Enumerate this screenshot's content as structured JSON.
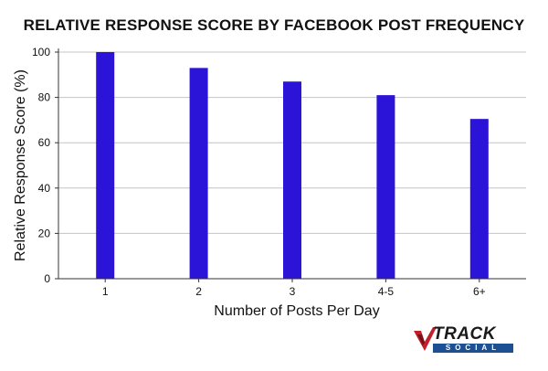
{
  "chart_data": {
    "type": "bar",
    "title": "RELATIVE RESPONSE SCORE BY FACEBOOK POST FREQUENCY",
    "xlabel": "Number of Posts Per Day",
    "ylabel": "Relative Response Score (%)",
    "categories": [
      "1",
      "2",
      "3",
      "4-5",
      "6+"
    ],
    "values": [
      100,
      93,
      87,
      81,
      70.5
    ],
    "ylim": [
      0,
      100
    ],
    "yticks": [
      0,
      20,
      40,
      60,
      80,
      100
    ],
    "grid": true,
    "bar_color": "#2b14d8"
  },
  "logo": {
    "word": "TRACK",
    "sub": "SOCIAL",
    "accent_color": "#c0202a",
    "sub_color": "#1d4f93"
  }
}
